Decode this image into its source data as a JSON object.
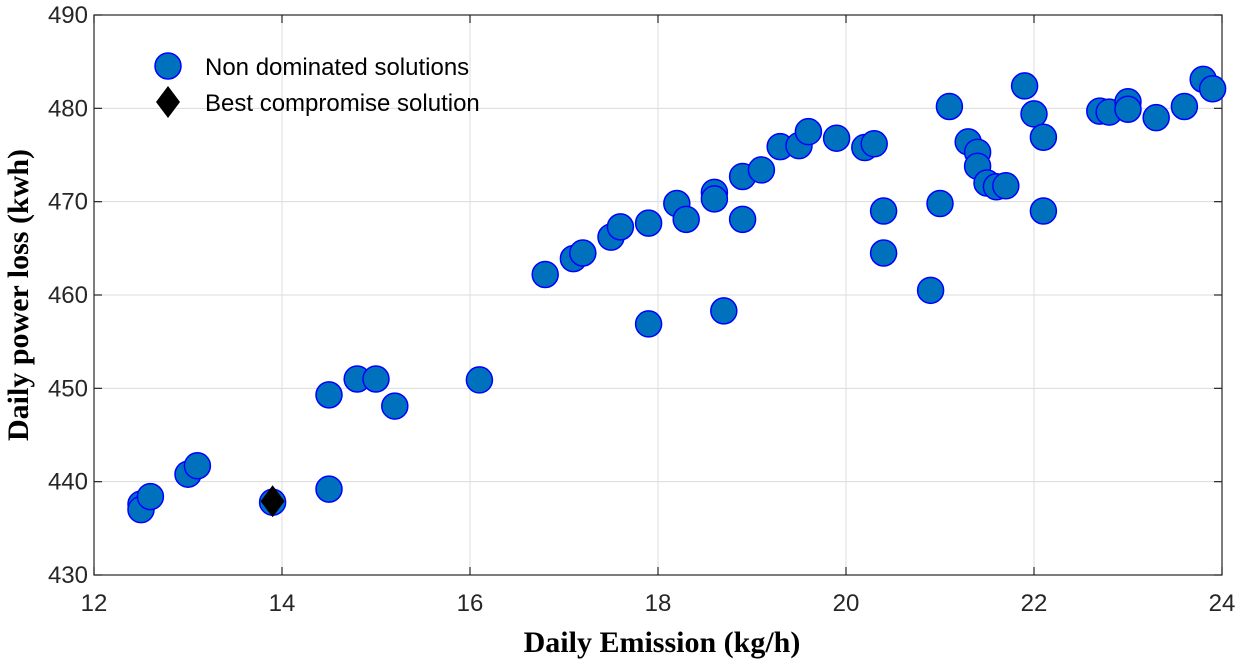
{
  "chart_data": {
    "type": "scatter",
    "xlabel": "Daily Emission (kg/h)",
    "ylabel": "Daily power loss (kwh)",
    "xlim": [
      12,
      24
    ],
    "ylim": [
      430,
      490
    ],
    "xticks": [
      12,
      14,
      16,
      18,
      20,
      22,
      24
    ],
    "yticks": [
      430,
      440,
      450,
      460,
      470,
      480,
      490
    ],
    "grid": true,
    "legend_position": "top-left",
    "series": [
      {
        "name": "Non dominated solutions",
        "marker": "circle",
        "color": "#0072BD",
        "edge_color": "#0000FF",
        "points": [
          [
            12.5,
            437.6
          ],
          [
            12.5,
            437.0
          ],
          [
            12.6,
            438.4
          ],
          [
            13.0,
            440.8
          ],
          [
            13.1,
            441.7
          ],
          [
            13.9,
            437.8
          ],
          [
            14.5,
            439.2
          ],
          [
            14.5,
            449.3
          ],
          [
            14.8,
            451.0
          ],
          [
            15.0,
            451.0
          ],
          [
            15.2,
            448.1
          ],
          [
            16.1,
            450.9
          ],
          [
            16.8,
            462.2
          ],
          [
            17.1,
            463.9
          ],
          [
            17.2,
            464.5
          ],
          [
            17.5,
            466.2
          ],
          [
            17.6,
            467.3
          ],
          [
            17.9,
            467.7
          ],
          [
            17.9,
            456.9
          ],
          [
            18.2,
            469.8
          ],
          [
            18.3,
            468.1
          ],
          [
            18.6,
            471.0
          ],
          [
            18.6,
            470.3
          ],
          [
            18.7,
            458.3
          ],
          [
            18.9,
            472.7
          ],
          [
            18.9,
            468.1
          ],
          [
            19.1,
            473.4
          ],
          [
            19.3,
            475.9
          ],
          [
            19.5,
            476.0
          ],
          [
            19.6,
            477.5
          ],
          [
            19.9,
            476.8
          ],
          [
            20.2,
            475.8
          ],
          [
            20.3,
            476.2
          ],
          [
            20.4,
            469.0
          ],
          [
            20.4,
            464.5
          ],
          [
            20.9,
            460.5
          ],
          [
            21.0,
            469.8
          ],
          [
            21.1,
            480.2
          ],
          [
            21.3,
            476.4
          ],
          [
            21.4,
            475.3
          ],
          [
            21.4,
            473.8
          ],
          [
            21.5,
            472.0
          ],
          [
            21.6,
            471.6
          ],
          [
            21.7,
            471.7
          ],
          [
            21.9,
            482.4
          ],
          [
            22.0,
            479.4
          ],
          [
            22.1,
            476.9
          ],
          [
            22.1,
            469.0
          ],
          [
            22.7,
            479.7
          ],
          [
            22.8,
            479.6
          ],
          [
            23.0,
            480.7
          ],
          [
            23.0,
            479.9
          ],
          [
            23.3,
            479.0
          ],
          [
            23.6,
            480.2
          ],
          [
            23.8,
            483.1
          ],
          [
            23.9,
            482.1
          ]
        ]
      },
      {
        "name": "Best compromise solution",
        "marker": "diamond",
        "color": "#000000",
        "points": [
          [
            13.9,
            437.9
          ]
        ]
      }
    ]
  }
}
